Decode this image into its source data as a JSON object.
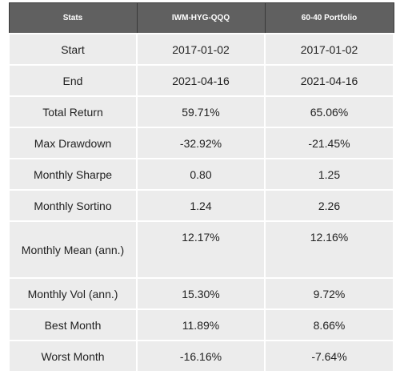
{
  "chart_data": {
    "type": "table",
    "columns": [
      "Stats",
      "IWM-HYG-QQQ",
      "60-40 Portfolio"
    ],
    "rows": [
      [
        "Start",
        "2017-01-02",
        "2017-01-02"
      ],
      [
        "End",
        "2021-04-16",
        "2021-04-16"
      ],
      [
        "Total Return",
        "59.71%",
        "65.06%"
      ],
      [
        "Max Drawdown",
        "-32.92%",
        "-21.45%"
      ],
      [
        "Monthly Sharpe",
        "0.80",
        "1.25"
      ],
      [
        "Monthly Sortino",
        "1.24",
        "2.26"
      ],
      [
        "Monthly Mean (ann.)",
        "12.17%",
        "12.16%"
      ],
      [
        "Monthly Vol (ann.)",
        "15.30%",
        "9.72%"
      ],
      [
        "Best Month",
        "11.89%",
        "8.66%"
      ],
      [
        "Worst Month",
        "-16.16%",
        "-7.64%"
      ]
    ]
  },
  "colors": {
    "header_bg": "#606060",
    "header_text": "#ffffff",
    "cell_bg": "#ececec",
    "cell_text": "#222222"
  }
}
